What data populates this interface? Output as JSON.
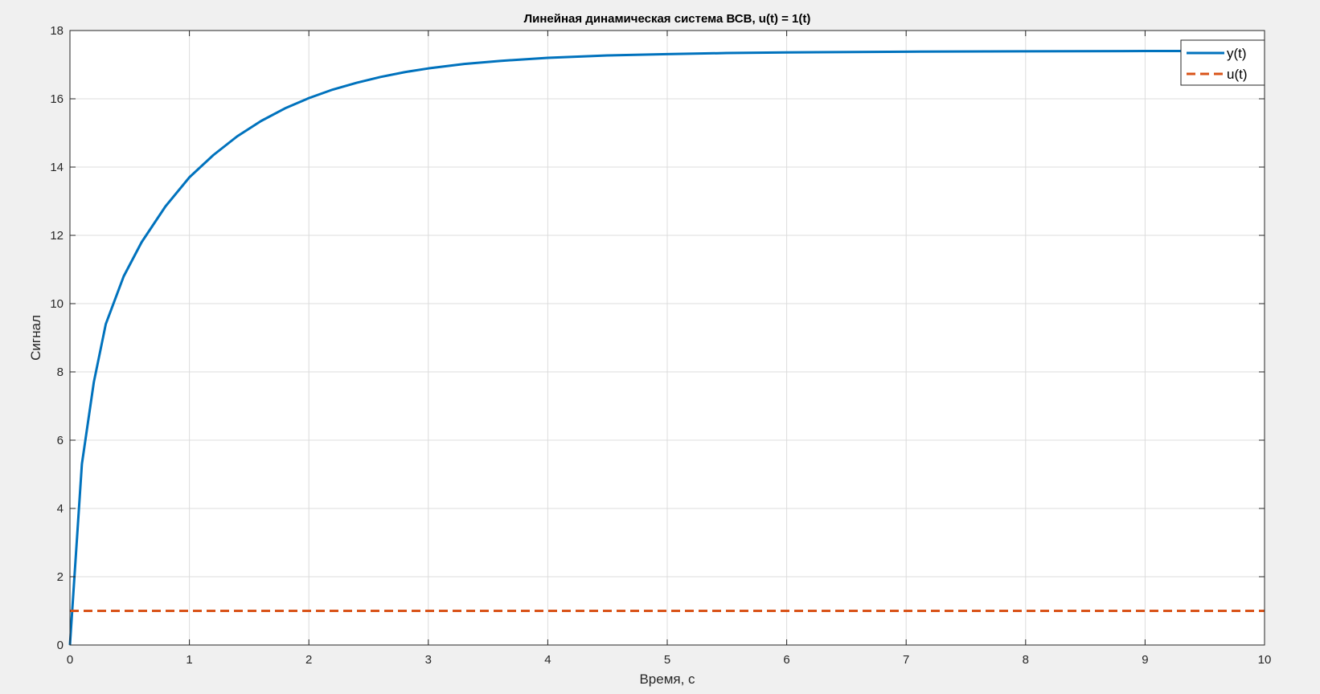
{
  "chart_data": {
    "type": "line",
    "title": "Линейная динамическая система ВСВ, u(t) = 1(t)",
    "xlabel": "Время, с",
    "ylabel": "Сигнал",
    "xlim": [
      0,
      10
    ],
    "ylim": [
      0,
      18
    ],
    "xticks": [
      0,
      1,
      2,
      3,
      4,
      5,
      6,
      7,
      8,
      9,
      10
    ],
    "yticks": [
      0,
      2,
      4,
      6,
      8,
      10,
      12,
      14,
      16,
      18
    ],
    "grid": true,
    "legend_position": "top-right",
    "series": [
      {
        "name": "y(t)",
        "color": "#0072bd",
        "style": "solid",
        "x": [
          0,
          0.1,
          0.2,
          0.3,
          0.45,
          0.6,
          0.8,
          1.0,
          1.2,
          1.4,
          1.6,
          1.8,
          2.0,
          2.2,
          2.4,
          2.6,
          2.8,
          3.0,
          3.3,
          3.6,
          4.0,
          4.5,
          5.0,
          5.5,
          6.0,
          7.0,
          8.0,
          9.0,
          10.0
        ],
        "y": [
          0,
          5.3,
          7.7,
          9.4,
          10.8,
          11.8,
          12.85,
          13.7,
          14.35,
          14.9,
          15.35,
          15.72,
          16.02,
          16.27,
          16.47,
          16.64,
          16.78,
          16.89,
          17.02,
          17.11,
          17.2,
          17.27,
          17.31,
          17.34,
          17.36,
          17.38,
          17.39,
          17.4,
          17.4
        ]
      },
      {
        "name": "u(t)",
        "color": "#d95319",
        "style": "dashed",
        "x": [
          0,
          10
        ],
        "y": [
          1,
          1
        ]
      }
    ]
  }
}
